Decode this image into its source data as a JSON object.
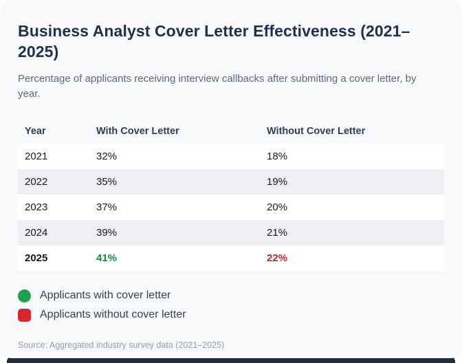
{
  "card": {
    "title": "Business Analyst Cover Letter Effectiveness (2021–2025)",
    "subtitle": "Percentage of applicants receiving interview callbacks after submitting a cover letter, by year.",
    "source": "Source: Aggregated industry survey data (2021–2025)"
  },
  "table": {
    "columns": [
      "Year",
      "With Cover Letter",
      "Without Cover Letter"
    ],
    "rows": [
      {
        "year": "2021",
        "with": "32%",
        "without": "18%"
      },
      {
        "year": "2022",
        "with": "35%",
        "without": "19%"
      },
      {
        "year": "2023",
        "with": "37%",
        "without": "20%"
      },
      {
        "year": "2024",
        "with": "39%",
        "without": "21%"
      },
      {
        "year": "2025",
        "with": "41%",
        "without": "22%"
      }
    ],
    "highlight_year": "2025"
  },
  "legend": {
    "items": [
      {
        "label": "Applicants with cover letter",
        "shape": "circle",
        "color": "#1fa04e"
      },
      {
        "label": "Applicants without cover letter",
        "shape": "square",
        "color": "#d8262c"
      }
    ]
  },
  "colors": {
    "card_bg": "#f7f8fa",
    "page_bg": "#ffffff",
    "bottom_strip": "#212c3d",
    "title": "#22304a",
    "subtitle": "#5c6980",
    "header_text": "#2e3d57",
    "cell_text": "#16191f",
    "row_stripe": "#edeff3",
    "green_marker": "#1fa04e",
    "green_value_text": "#168a40",
    "red_marker": "#d8262c",
    "red_value_text": "#c2202a",
    "legend_text": "#33415a",
    "source_text": "#949ead"
  },
  "chart_data": {
    "type": "table",
    "title": "Business Analyst Cover Letter Effectiveness (2021–2025)",
    "subtitle": "Percentage of applicants receiving interview callbacks after submitting a cover letter, by year.",
    "categories": [
      "2021",
      "2022",
      "2023",
      "2024",
      "2025"
    ],
    "series": [
      {
        "name": "With Cover Letter",
        "values": [
          32,
          35,
          37,
          39,
          41
        ],
        "unit": "%",
        "color": "#1fa04e"
      },
      {
        "name": "Without Cover Letter",
        "values": [
          18,
          19,
          20,
          21,
          22
        ],
        "unit": "%",
        "color": "#d8262c"
      }
    ],
    "legend_entries": [
      "Applicants with cover letter",
      "Applicants without cover letter"
    ],
    "legend_position": "bottom-left",
    "source": "Source: Aggregated industry survey data (2021–2025)"
  }
}
